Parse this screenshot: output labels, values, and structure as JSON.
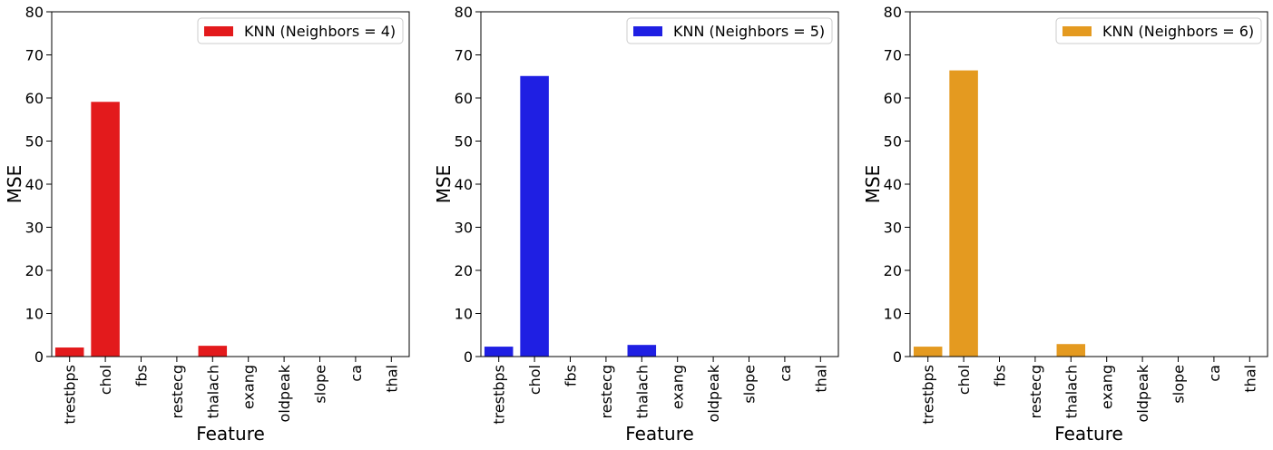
{
  "chart_data": [
    {
      "type": "bar",
      "categories": [
        "trestbps",
        "chol",
        "fbs",
        "restecg",
        "thalach",
        "exang",
        "oldpeak",
        "slope",
        "ca",
        "thal"
      ],
      "series": [
        {
          "name": "KNN (Neighbors = 4)",
          "values": [
            2.1,
            59.1,
            0,
            0,
            2.5,
            0,
            0,
            0,
            0,
            0
          ]
        }
      ],
      "xlabel": "Feature",
      "ylabel": "MSE",
      "ylim": [
        0,
        80
      ],
      "yticks": [
        0,
        10,
        20,
        30,
        40,
        50,
        60,
        70,
        80
      ],
      "color": "#e31a1c",
      "grid": false,
      "legend": "upper right"
    },
    {
      "type": "bar",
      "categories": [
        "trestbps",
        "chol",
        "fbs",
        "restecg",
        "thalach",
        "exang",
        "oldpeak",
        "slope",
        "ca",
        "thal"
      ],
      "series": [
        {
          "name": "KNN (Neighbors = 5)",
          "values": [
            2.3,
            65.1,
            0,
            0,
            2.7,
            0,
            0,
            0,
            0,
            0
          ]
        }
      ],
      "xlabel": "Feature",
      "ylabel": "MSE",
      "ylim": [
        0,
        80
      ],
      "yticks": [
        0,
        10,
        20,
        30,
        40,
        50,
        60,
        70,
        80
      ],
      "color": "#1f1fe3",
      "grid": false,
      "legend": "upper right"
    },
    {
      "type": "bar",
      "categories": [
        "trestbps",
        "chol",
        "fbs",
        "restecg",
        "thalach",
        "exang",
        "oldpeak",
        "slope",
        "ca",
        "thal"
      ],
      "series": [
        {
          "name": "KNN (Neighbors = 6)",
          "values": [
            2.3,
            66.4,
            0,
            0,
            2.9,
            0,
            0,
            0,
            0,
            0
          ]
        }
      ],
      "xlabel": "Feature",
      "ylabel": "MSE",
      "ylim": [
        0,
        80
      ],
      "yticks": [
        0,
        10,
        20,
        30,
        40,
        50,
        60,
        70,
        80
      ],
      "color": "#e49a20",
      "grid": false,
      "legend": "upper right"
    }
  ]
}
